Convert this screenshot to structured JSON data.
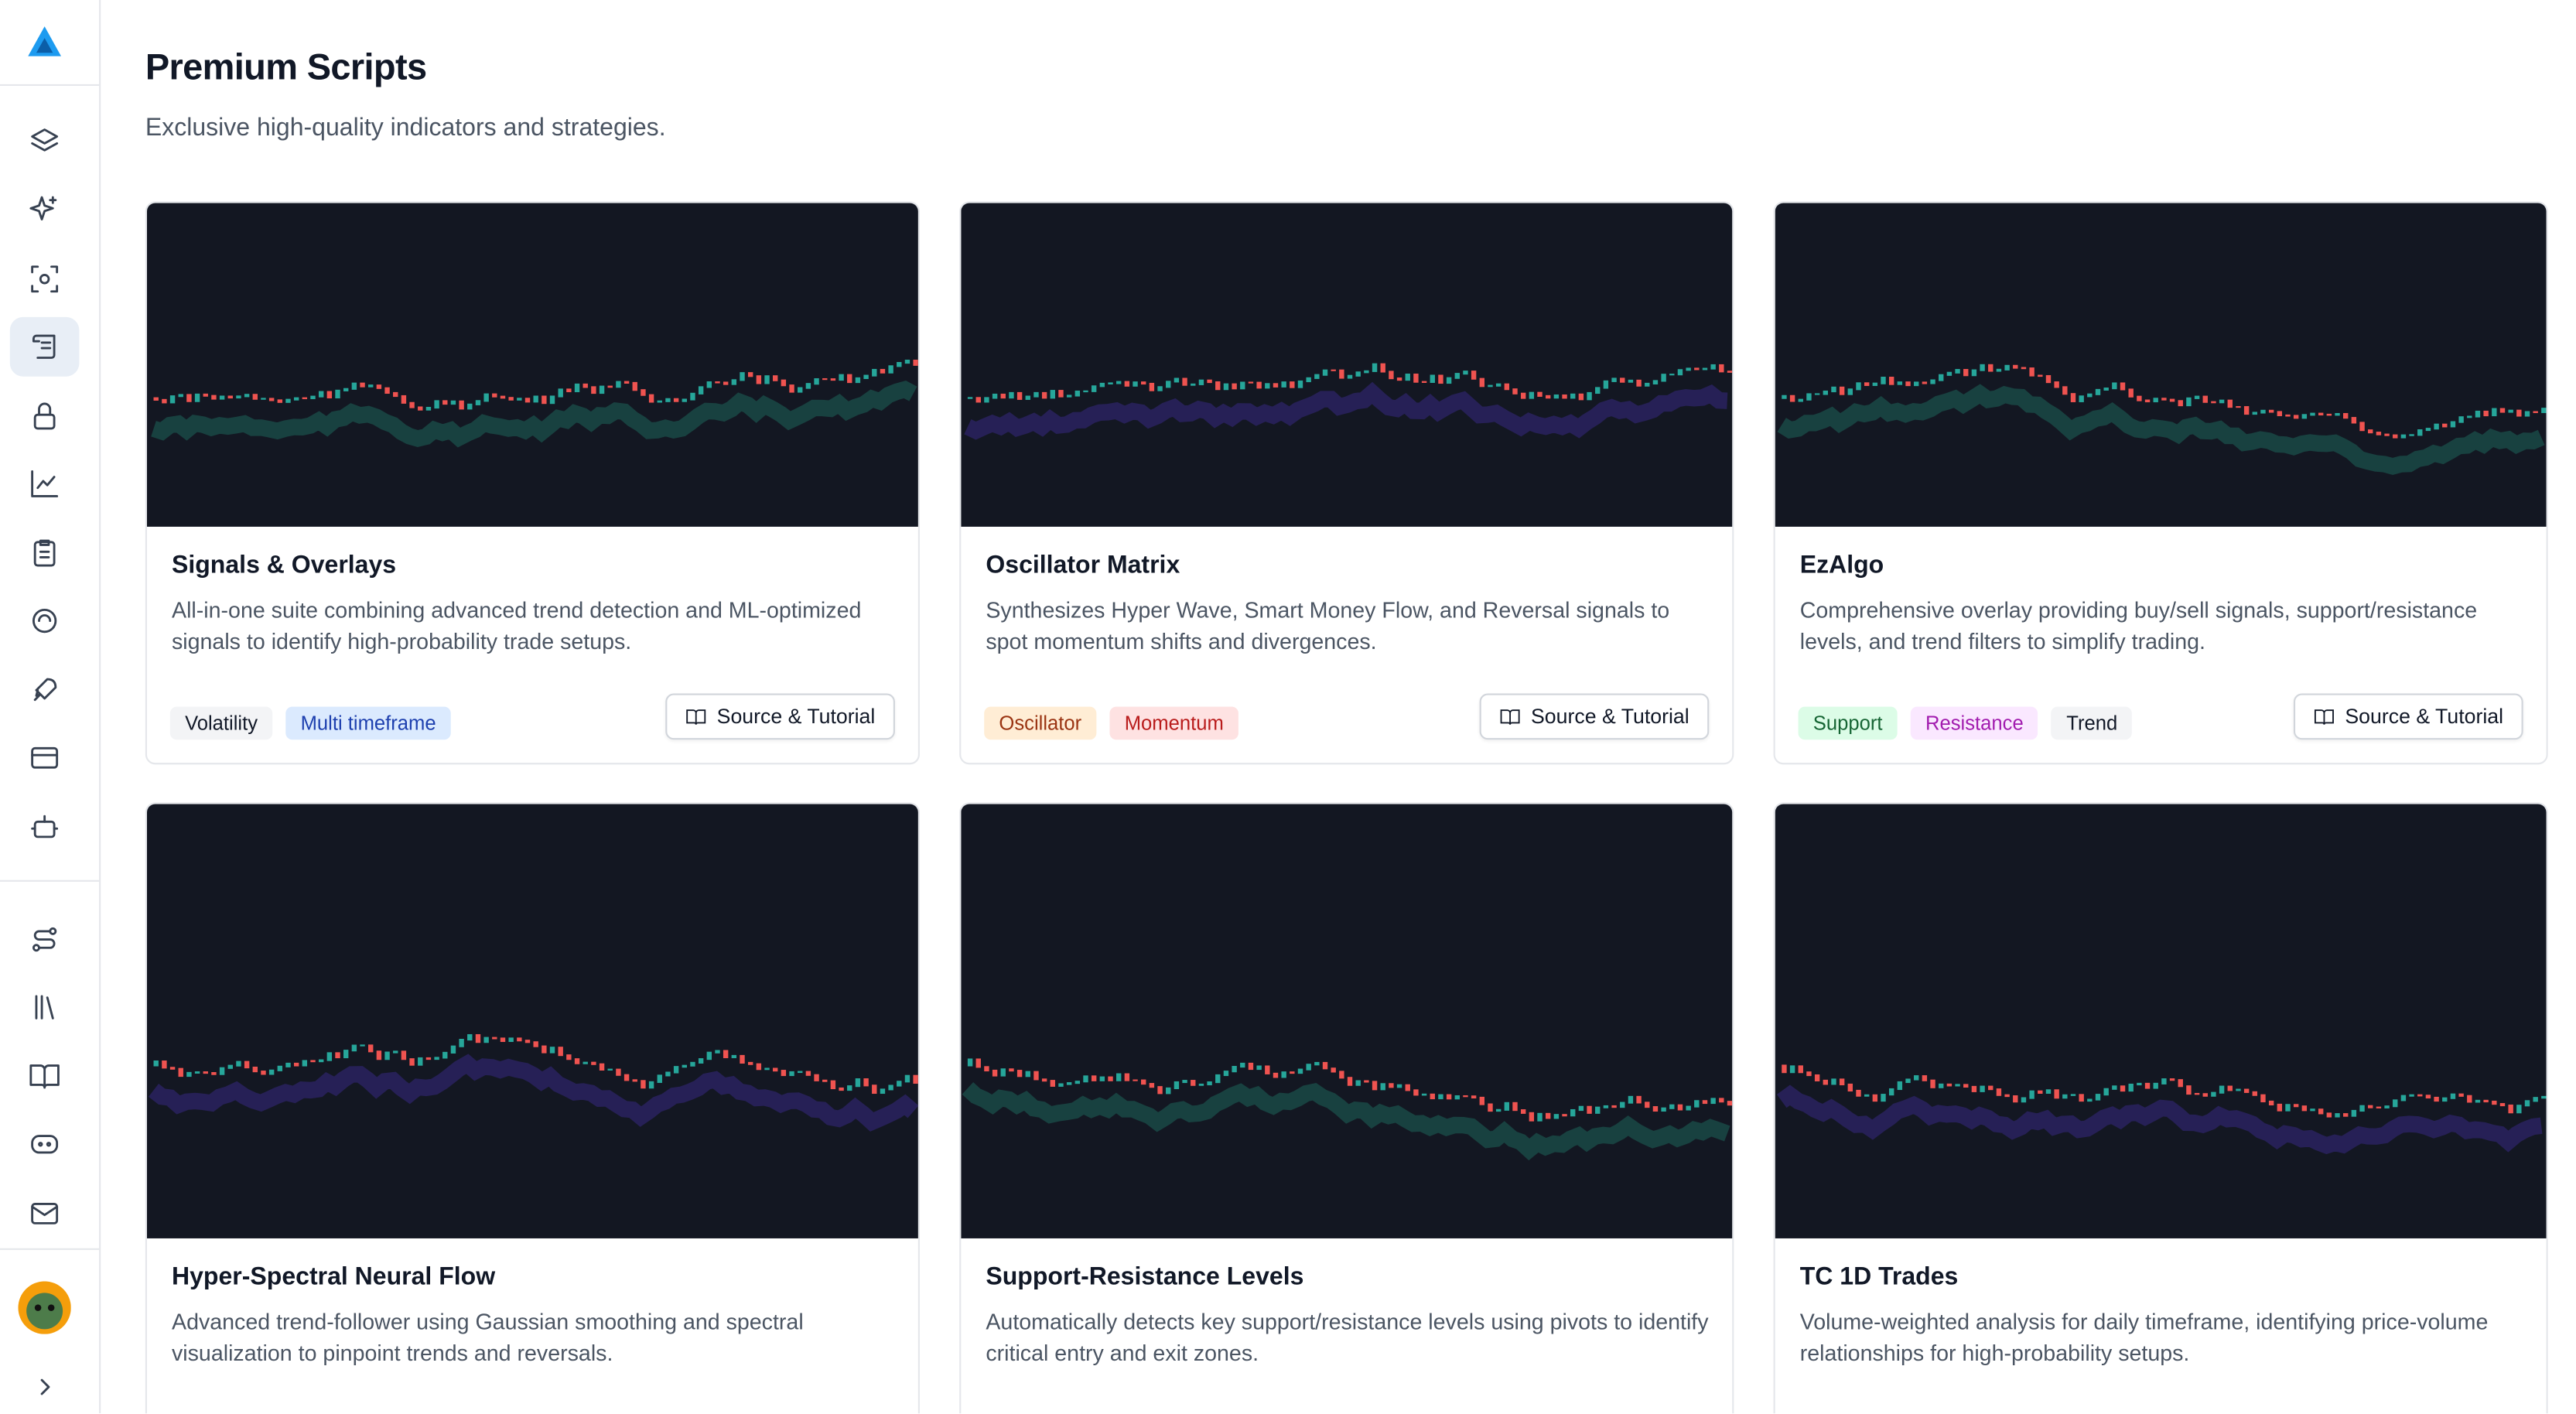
{
  "header": {
    "title": "Premium Scripts",
    "subtitle": "Exclusive high-quality indicators and strategies."
  },
  "cards": [
    {
      "title": "Signals & Overlays",
      "description": "All-in-one suite combining advanced trend detection and ML-optimized signals to identify high-probability trade setups.",
      "tags": [
        "Volatility",
        "Multi timeframe"
      ],
      "button": "Source & Tutorial"
    },
    {
      "title": "Oscillator Matrix",
      "description": "Synthesizes Hyper Wave, Smart Money Flow, and Reversal signals to spot momentum shifts and divergences.",
      "tags": [
        "Oscillator",
        "Momentum"
      ],
      "button": "Source & Tutorial"
    },
    {
      "title": "EzAlgo",
      "description": "Comprehensive overlay providing buy/sell signals, support/resistance levels, and trend filters to simplify trading.",
      "tags": [
        "Support",
        "Resistance",
        "Trend"
      ],
      "button": "Source & Tutorial"
    },
    {
      "title": "Hyper-Spectral Neural Flow",
      "description": "Advanced trend-follower using Gaussian smoothing and spectral visualization to pinpoint trends and reversals."
    },
    {
      "title": "Support-Resistance Levels",
      "description": "Automatically detects key support/resistance levels using pivots to identify critical entry and exit zones."
    },
    {
      "title": "TC 1D Trades",
      "description": "Volume-weighted analysis for daily timeframe, identifying price-volume relationships for high-probability setups."
    }
  ]
}
